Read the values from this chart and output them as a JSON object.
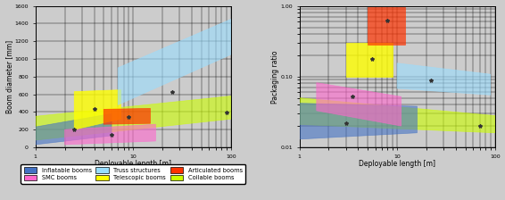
{
  "bg_color": "#CCCCCC",
  "left": {
    "xlabel": "Deployable length [m]",
    "ylabel": "Boom diameter [mm]",
    "xlim": [
      1,
      100
    ],
    "ylim": [
      0,
      1600
    ],
    "polygons": {
      "coilable": {
        "color": "#CCFF00",
        "alpha": 0.6,
        "pts": [
          [
            1,
            80
          ],
          [
            1,
            350
          ],
          [
            100,
            580
          ],
          [
            100,
            320
          ]
        ],
        "mx": 90,
        "my": 390
      },
      "inflatable": {
        "color": "#4472C4",
        "alpha": 0.6,
        "pts": [
          [
            1,
            30
          ],
          [
            1,
            230
          ],
          [
            6,
            380
          ],
          [
            6,
            130
          ]
        ],
        "mx": 2.5,
        "my": 200
      },
      "smc": {
        "color": "#FF66CC",
        "alpha": 0.6,
        "pts": [
          [
            2,
            30
          ],
          [
            2,
            200
          ],
          [
            17,
            260
          ],
          [
            17,
            70
          ]
        ],
        "mx": 6,
        "my": 140
      },
      "telescopic": {
        "color": "#FFFF00",
        "alpha": 0.8,
        "pts": [
          [
            2.5,
            200
          ],
          [
            2.5,
            630
          ],
          [
            7.5,
            650
          ],
          [
            7.5,
            320
          ]
        ],
        "mx": 4,
        "my": 430
      },
      "articulated": {
        "color": "#FF3300",
        "alpha": 0.7,
        "pts": [
          [
            5,
            260
          ],
          [
            5,
            430
          ],
          [
            15,
            440
          ],
          [
            15,
            270
          ]
        ],
        "mx": 9,
        "my": 340
      },
      "truss": {
        "color": "#99DDFF",
        "alpha": 0.6,
        "pts": [
          [
            7,
            480
          ],
          [
            7,
            900
          ],
          [
            100,
            1450
          ],
          [
            100,
            1050
          ]
        ],
        "mx": 25,
        "my": 630
      }
    }
  },
  "right": {
    "xlabel": "Deployable length [m]",
    "ylabel": "Packaging ratio",
    "xlim": [
      1,
      100
    ],
    "ylim": [
      0.01,
      1.0
    ],
    "polygons": {
      "coilable": {
        "color": "#CCFF00",
        "alpha": 0.6,
        "pts": [
          [
            1,
            0.021
          ],
          [
            1,
            0.05
          ],
          [
            100,
            0.028
          ],
          [
            100,
            0.016
          ]
        ],
        "mx": 70,
        "my": 0.02
      },
      "inflatable": {
        "color": "#4472C4",
        "alpha": 0.6,
        "pts": [
          [
            1,
            0.013
          ],
          [
            1,
            0.042
          ],
          [
            16,
            0.038
          ],
          [
            16,
            0.016
          ]
        ],
        "mx": 3,
        "my": 0.022
      },
      "smc": {
        "color": "#FF66CC",
        "alpha": 0.6,
        "pts": [
          [
            1.5,
            0.033
          ],
          [
            1.5,
            0.082
          ],
          [
            11,
            0.052
          ],
          [
            11,
            0.02
          ]
        ],
        "mx": 3.5,
        "my": 0.052
      },
      "telescopic": {
        "color": "#FFFF00",
        "alpha": 0.8,
        "pts": [
          [
            3,
            0.1
          ],
          [
            3,
            0.3
          ],
          [
            9,
            0.3
          ],
          [
            9,
            0.1
          ]
        ],
        "mx": 5.5,
        "my": 0.18
      },
      "articulated": {
        "color": "#FF3300",
        "alpha": 0.7,
        "pts": [
          [
            5,
            0.28
          ],
          [
            5,
            0.95
          ],
          [
            12,
            0.95
          ],
          [
            12,
            0.28
          ]
        ],
        "mx": 8,
        "my": 0.62
      },
      "truss": {
        "color": "#99DDFF",
        "alpha": 0.6,
        "pts": [
          [
            10,
            0.068
          ],
          [
            10,
            0.155
          ],
          [
            90,
            0.108
          ],
          [
            90,
            0.055
          ]
        ],
        "mx": 22,
        "my": 0.088
      }
    }
  },
  "legend": {
    "order": [
      "inflatable",
      "smc",
      "truss",
      "telescopic",
      "articulated",
      "coilable"
    ],
    "labels": {
      "inflatable": "Inflatable booms",
      "smc": "SMC booms",
      "truss": "Truss structures",
      "telescopic": "Telescopic booms",
      "articulated": "Articulated booms",
      "coilable": "Coilable booms"
    },
    "colors": {
      "inflatable": "#4472C4",
      "smc": "#FF66CC",
      "truss": "#99DDFF",
      "telescopic": "#FFFF00",
      "articulated": "#FF3300",
      "coilable": "#CCFF00"
    }
  }
}
